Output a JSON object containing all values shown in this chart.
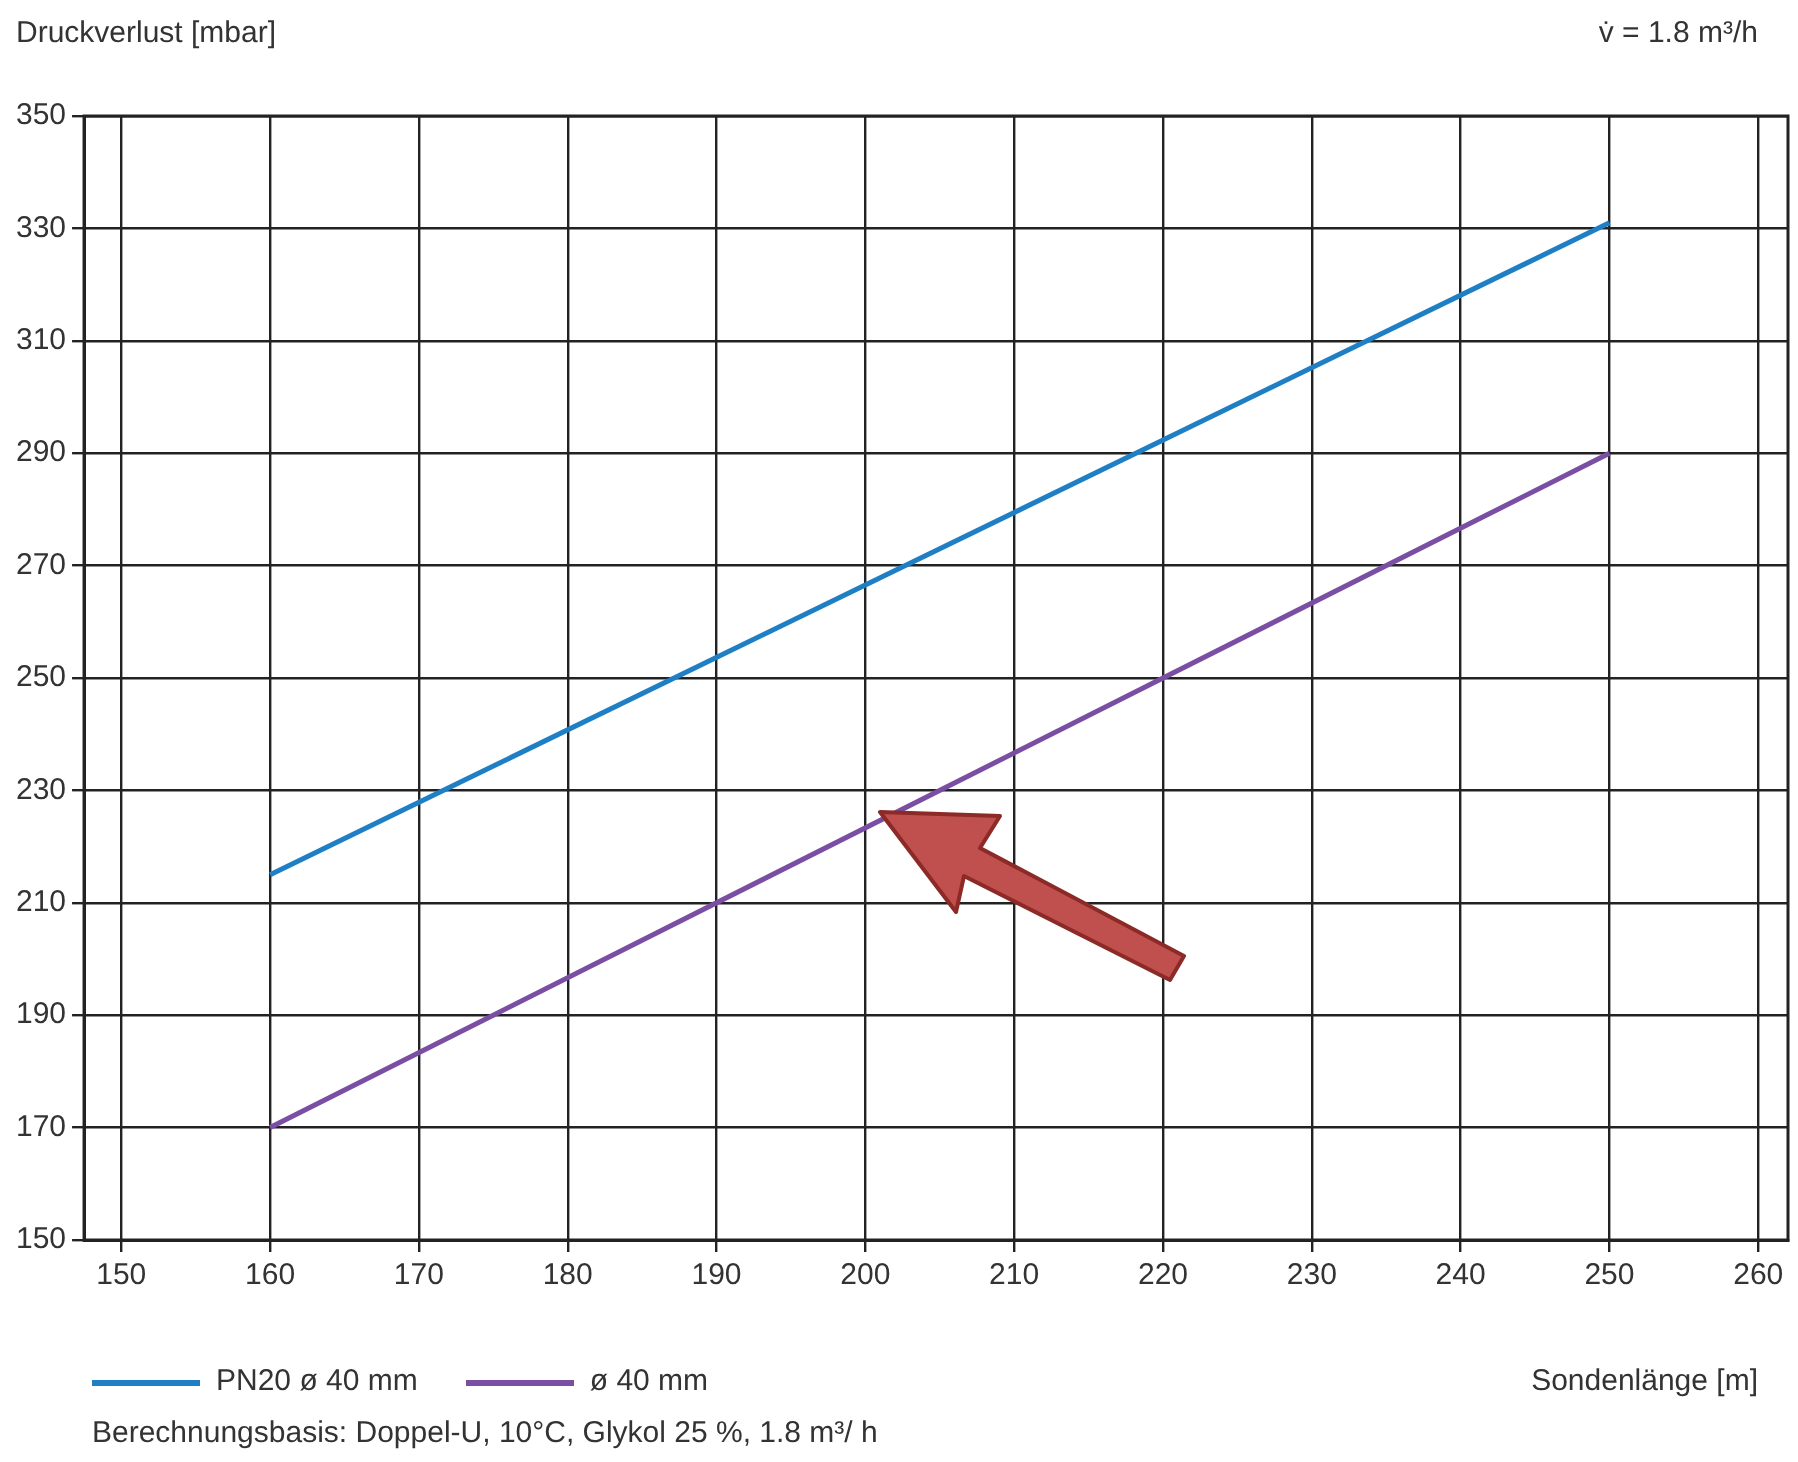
{
  "chart_data": {
    "type": "line",
    "ylabel": "Druckverlust [mbar]",
    "xlabel": "Sondenlänge [m]",
    "annotations": [
      "v̇ = 1.8 m³/h",
      "Berechnungsbasis: Doppel-U, 10°C, Glykol 25 %, 1.8 m³/ h"
    ],
    "x": [
      160,
      250
    ],
    "series": [
      {
        "name": "PN20 ø 40 mm",
        "color": "#1f7fc4",
        "values": [
          215,
          331
        ]
      },
      {
        "name": "ø 40 mm",
        "color": "#7a4fa3",
        "values": [
          170,
          290
        ]
      }
    ],
    "xlim": [
      147.5,
      262
    ],
    "xticks": [
      150,
      160,
      170,
      180,
      190,
      200,
      210,
      220,
      230,
      240,
      250,
      260
    ],
    "ylim": [
      150,
      350
    ],
    "yticks": [
      150,
      170,
      190,
      210,
      230,
      250,
      270,
      290,
      310,
      330,
      350
    ],
    "grid": true,
    "legend": "bottom",
    "marker": "none",
    "line_style": "solid"
  }
}
